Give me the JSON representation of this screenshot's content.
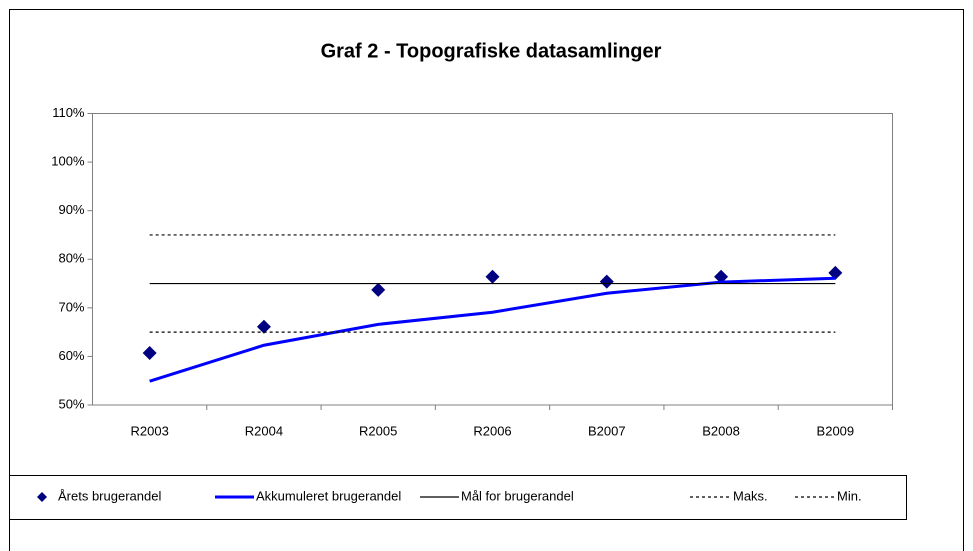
{
  "chart_data": {
    "type": "line",
    "title": "Graf 2 - Topografiske datasamlinger",
    "categories": [
      "R2003",
      "R2004",
      "R2005",
      "R2006",
      "B2007",
      "B2008",
      "B2009"
    ],
    "series": [
      {
        "name": "Årets brugerandel",
        "color": "#000080",
        "style": "marker",
        "values": [
          60.7,
          66.1,
          73.7,
          76.4,
          75.4,
          76.4,
          77.2
        ]
      },
      {
        "name": "Akkumuleret brugerandel",
        "color": "#0000ff",
        "style": "thick",
        "values": [
          54.9,
          62.3,
          66.6,
          69.1,
          73.0,
          75.3,
          76.1
        ]
      },
      {
        "name": "Mål for brugerandel",
        "color": "#000000",
        "style": "solid",
        "values": [
          75,
          75,
          75,
          75,
          75,
          75,
          75
        ]
      },
      {
        "name": "Maks.",
        "color": "#000000",
        "style": "dashed",
        "values": [
          85,
          85,
          85,
          85,
          85,
          85,
          85
        ]
      },
      {
        "name": "Min.",
        "color": "#000000",
        "style": "dashed",
        "values": [
          65,
          65,
          65,
          65,
          65,
          65,
          65
        ]
      }
    ],
    "ylim": [
      50,
      110
    ],
    "yticks": [
      {
        "value": 50,
        "label": "50%"
      },
      {
        "value": 60,
        "label": "60%"
      },
      {
        "value": 70,
        "label": "70%"
      },
      {
        "value": 80,
        "label": "80%"
      },
      {
        "value": 90,
        "label": "90%"
      },
      {
        "value": 100,
        "label": "100%"
      },
      {
        "value": 110,
        "label": "110%"
      }
    ],
    "legend": "bottom"
  }
}
